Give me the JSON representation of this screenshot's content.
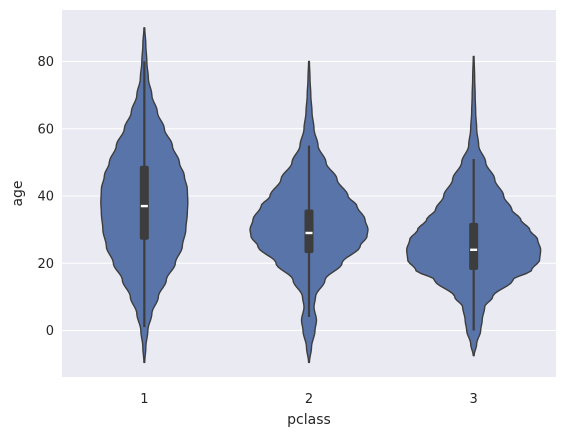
{
  "chart_data": {
    "type": "violin",
    "title": "",
    "xlabel": "pclass",
    "ylabel": "age",
    "categories": [
      "1",
      "2",
      "3"
    ],
    "ylim": [
      -14,
      93
    ],
    "yticks": [
      0,
      20,
      40,
      60,
      80
    ],
    "ytick_labels": [
      "0",
      "20",
      "40",
      "60",
      "80"
    ],
    "grid": true,
    "colors": {
      "background": "#eaeaf2",
      "violin_fill": "#5874a9",
      "violin_edge": "#3d3d3d",
      "box": "#3d3d3d",
      "median": "#ffffff",
      "grid": "#ffffff"
    },
    "series": [
      {
        "category": "1",
        "extent": [
          -9.5,
          90
        ],
        "quartiles": [
          27,
          37,
          49
        ],
        "whiskers": [
          1,
          80
        ],
        "profile": [
          [
            -9.5,
            0.4
          ],
          [
            -5,
            1.5
          ],
          [
            0,
            3.5
          ],
          [
            5,
            7.5
          ],
          [
            10,
            14
          ],
          [
            15,
            22
          ],
          [
            20,
            31
          ],
          [
            25,
            38
          ],
          [
            30,
            41.5
          ],
          [
            35,
            43
          ],
          [
            38,
            43.5
          ],
          [
            42,
            43
          ],
          [
            46,
            40
          ],
          [
            50,
            35
          ],
          [
            55,
            28
          ],
          [
            60,
            20
          ],
          [
            65,
            13
          ],
          [
            70,
            7.5
          ],
          [
            75,
            4
          ],
          [
            80,
            2.5
          ],
          [
            85,
            1.5
          ],
          [
            90,
            0.4
          ]
        ]
      },
      {
        "category": "2",
        "extent": [
          -9.5,
          80
        ],
        "quartiles": [
          23,
          29,
          36
        ],
        "whiskers": [
          4,
          55
        ],
        "profile": [
          [
            -9.5,
            0.4
          ],
          [
            -5,
            2.5
          ],
          [
            0,
            6
          ],
          [
            3,
            7.5
          ],
          [
            7,
            5
          ],
          [
            10,
            6.5
          ],
          [
            15,
            16
          ],
          [
            20,
            33
          ],
          [
            25,
            51
          ],
          [
            28,
            58
          ],
          [
            30,
            59
          ],
          [
            33,
            56
          ],
          [
            37,
            48
          ],
          [
            40,
            39
          ],
          [
            45,
            28
          ],
          [
            50,
            17
          ],
          [
            55,
            9
          ],
          [
            60,
            5
          ],
          [
            65,
            3
          ],
          [
            70,
            1.8
          ],
          [
            75,
            1
          ],
          [
            80,
            0.4
          ]
        ]
      },
      {
        "category": "3",
        "extent": [
          -7.5,
          81.5
        ],
        "quartiles": [
          18,
          24,
          32
        ],
        "whiskers": [
          0,
          51
        ],
        "profile": [
          [
            -7.5,
            0.4
          ],
          [
            -4,
            3
          ],
          [
            0,
            7
          ],
          [
            3,
            8.5
          ],
          [
            7,
            11
          ],
          [
            10,
            19
          ],
          [
            15,
            39
          ],
          [
            18,
            58
          ],
          [
            21,
            66
          ],
          [
            24,
            67
          ],
          [
            27,
            64
          ],
          [
            30,
            56
          ],
          [
            33,
            47
          ],
          [
            36,
            38
          ],
          [
            40,
            30
          ],
          [
            45,
            21
          ],
          [
            50,
            12
          ],
          [
            55,
            5
          ],
          [
            60,
            3
          ],
          [
            65,
            2
          ],
          [
            70,
            1.5
          ],
          [
            75,
            1
          ],
          [
            81.5,
            0.4
          ]
        ]
      }
    ]
  }
}
